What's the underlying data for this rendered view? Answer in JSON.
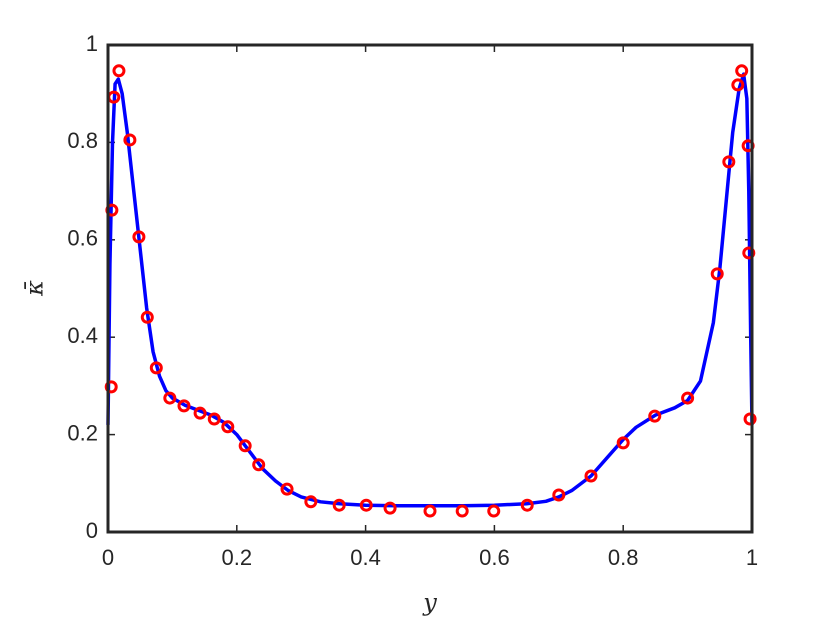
{
  "chart_data": {
    "type": "line",
    "xlabel": "y",
    "ylabel": "κ̄",
    "xlim": [
      0,
      1
    ],
    "ylim": [
      0,
      1
    ],
    "xticks": [
      0,
      0.2,
      0.4,
      0.6,
      0.8,
      1
    ],
    "yticks": [
      0,
      0.2,
      0.4,
      0.6,
      0.8,
      1
    ],
    "series": [
      {
        "type": "line",
        "color": "#0000ff",
        "x": [
          0,
          0.003,
          0.007,
          0.011,
          0.016,
          0.022,
          0.03,
          0.04,
          0.05,
          0.06,
          0.07,
          0.08,
          0.09,
          0.1,
          0.12,
          0.14,
          0.16,
          0.18,
          0.2,
          0.22,
          0.24,
          0.26,
          0.28,
          0.3,
          0.33,
          0.36,
          0.4,
          0.45,
          0.5,
          0.55,
          0.6,
          0.65,
          0.68,
          0.7,
          0.72,
          0.75,
          0.78,
          0.8,
          0.82,
          0.85,
          0.88,
          0.9,
          0.92,
          0.94,
          0.95,
          0.96,
          0.97,
          0.98,
          0.987,
          0.992,
          0.995,
          0.998,
          1
        ],
        "values": [
          0.22,
          0.55,
          0.8,
          0.92,
          0.93,
          0.9,
          0.82,
          0.7,
          0.58,
          0.46,
          0.37,
          0.32,
          0.29,
          0.275,
          0.26,
          0.25,
          0.24,
          0.225,
          0.2,
          0.165,
          0.13,
          0.105,
          0.085,
          0.072,
          0.062,
          0.058,
          0.055,
          0.054,
          0.054,
          0.054,
          0.055,
          0.058,
          0.063,
          0.072,
          0.085,
          0.115,
          0.16,
          0.19,
          0.215,
          0.24,
          0.255,
          0.27,
          0.31,
          0.43,
          0.54,
          0.68,
          0.82,
          0.91,
          0.94,
          0.89,
          0.7,
          0.4,
          0.22
        ]
      },
      {
        "type": "scatter",
        "color": "#ff0000",
        "x": [
          0.005,
          0.006,
          0.009,
          0.017,
          0.034,
          0.048,
          0.061,
          0.075,
          0.096,
          0.118,
          0.143,
          0.165,
          0.186,
          0.213,
          0.234,
          0.278,
          0.315,
          0.359,
          0.401,
          0.438,
          0.5,
          0.55,
          0.599,
          0.651,
          0.7,
          0.75,
          0.8,
          0.849,
          0.9,
          0.946,
          0.964,
          0.978,
          0.984,
          0.994,
          0.995,
          0.997
        ],
        "values": [
          0.298,
          0.661,
          0.893,
          0.947,
          0.805,
          0.606,
          0.441,
          0.337,
          0.275,
          0.259,
          0.244,
          0.232,
          0.216,
          0.177,
          0.138,
          0.088,
          0.062,
          0.055,
          0.055,
          0.049,
          0.043,
          0.043,
          0.043,
          0.055,
          0.076,
          0.115,
          0.183,
          0.238,
          0.275,
          0.53,
          0.76,
          0.918,
          0.947,
          0.793,
          0.573,
          0.232
        ]
      }
    ]
  }
}
